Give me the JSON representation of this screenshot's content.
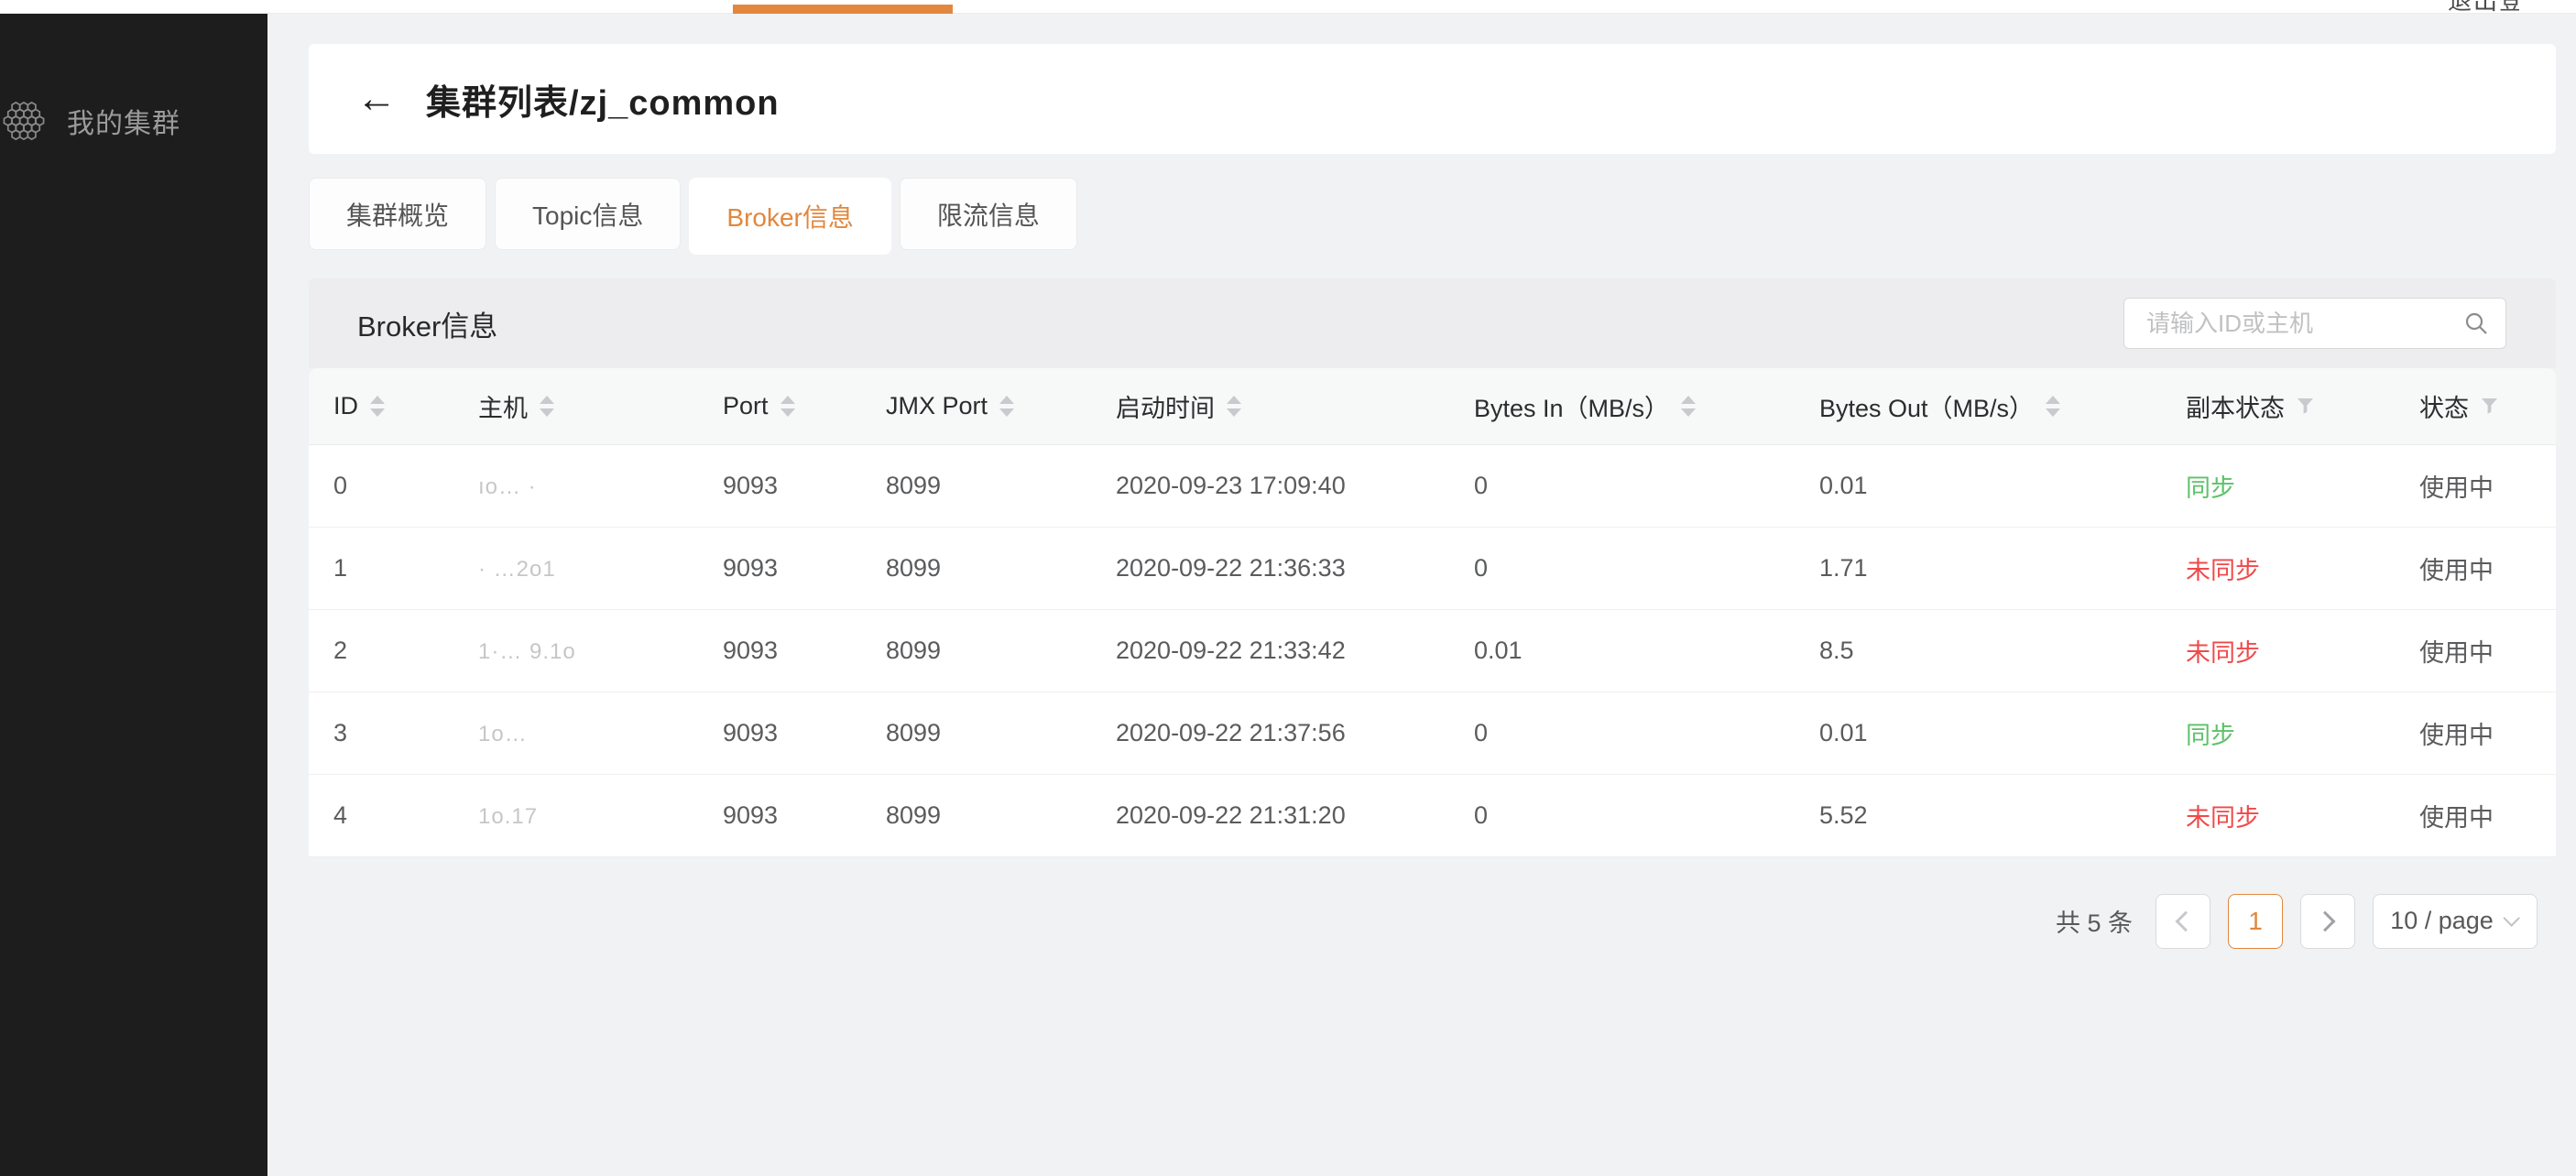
{
  "colors": {
    "accent": "#e2873d",
    "green": "#5cc268",
    "red": "#f04949"
  },
  "topbar": {
    "right_text": "退出登录"
  },
  "sidebar": {
    "items": [
      {
        "id": "my-clusters",
        "icon": "honeycomb-icon",
        "label": "我的集群"
      }
    ]
  },
  "header": {
    "back_label": "←",
    "title": "集群列表/zj_common"
  },
  "tabs": [
    {
      "key": "cluster-overview",
      "label": "集群概览",
      "active": false
    },
    {
      "key": "topic-info",
      "label": "Topic信息",
      "active": false
    },
    {
      "key": "broker-info",
      "label": "Broker信息",
      "active": true
    },
    {
      "key": "throttle-info",
      "label": "限流信息",
      "active": false
    }
  ],
  "panel": {
    "title": "Broker信息",
    "search": {
      "placeholder": "请输入ID或主机",
      "value": ""
    }
  },
  "table": {
    "columns": [
      {
        "key": "id",
        "label": "ID",
        "control": "sorter"
      },
      {
        "key": "host",
        "label": "主机",
        "control": "sorter"
      },
      {
        "key": "port",
        "label": "Port",
        "control": "sorter"
      },
      {
        "key": "jmx_port",
        "label": "JMX Port",
        "control": "sorter"
      },
      {
        "key": "start_time",
        "label": "启动时间",
        "control": "sorter"
      },
      {
        "key": "bytes_in",
        "label": "Bytes In（MB/s）",
        "control": "sorter"
      },
      {
        "key": "bytes_out",
        "label": "Bytes Out（MB/s）",
        "control": "sorter"
      },
      {
        "key": "replica_status",
        "label": "副本状态",
        "control": "filter"
      },
      {
        "key": "status",
        "label": "状态",
        "control": "filter"
      }
    ],
    "rows": [
      {
        "id": "0",
        "host_fragment": "ıo… ·",
        "port": "9093",
        "jmx_port": "8099",
        "start_time": "2020-09-23 17:09:40",
        "bytes_in": "0",
        "bytes_out": "0.01",
        "replica_status": "同步",
        "replica_state": "synced",
        "status": "使用中"
      },
      {
        "id": "1",
        "host_fragment": "· …2o1",
        "port": "9093",
        "jmx_port": "8099",
        "start_time": "2020-09-22 21:36:33",
        "bytes_in": "0",
        "bytes_out": "1.71",
        "replica_status": "未同步",
        "replica_state": "unsynced",
        "status": "使用中"
      },
      {
        "id": "2",
        "host_fragment": "1·…  9.1o",
        "port": "9093",
        "jmx_port": "8099",
        "start_time": "2020-09-22 21:33:42",
        "bytes_in": "0.01",
        "bytes_out": "8.5",
        "replica_status": "未同步",
        "replica_state": "unsynced",
        "status": "使用中"
      },
      {
        "id": "3",
        "host_fragment": "1o…",
        "port": "9093",
        "jmx_port": "8099",
        "start_time": "2020-09-22 21:37:56",
        "bytes_in": "0",
        "bytes_out": "0.01",
        "replica_status": "同步",
        "replica_state": "synced",
        "status": "使用中"
      },
      {
        "id": "4",
        "host_fragment": "1o.17",
        "port": "9093",
        "jmx_port": "8099",
        "start_time": "2020-09-22 21:31:20",
        "bytes_in": "0",
        "bytes_out": "5.52",
        "replica_status": "未同步",
        "replica_state": "unsynced",
        "status": "使用中"
      }
    ]
  },
  "pagination": {
    "total_text": "共 5 条",
    "current_page": "1",
    "page_size_label": "10 / page"
  }
}
